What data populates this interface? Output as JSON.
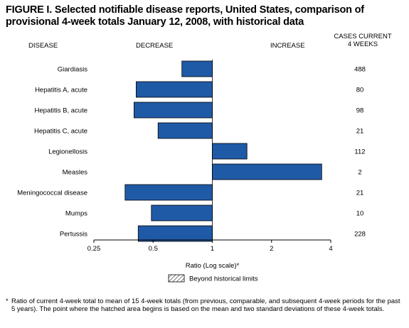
{
  "title": "FIGURE I. Selected notifiable disease reports, United States, comparison of provisional 4-week totals January 12, 2008, with historical data",
  "headers": {
    "disease": "DISEASE",
    "decrease": "DECREASE",
    "increase": "INCREASE",
    "cases": "CASES CURRENT\n4 WEEKS"
  },
  "legend_label": "Beyond historical limits",
  "footnote_star": "*",
  "footnote": "Ratio of current 4-week total to mean of 15 4-week totals (from previous, comparable, and subsequent 4-week periods for the past 5 years). The point where the hatched area begins is based on the mean and two standard deviations of these 4-week totals.",
  "colors": {
    "bar": "#1f5aa6",
    "bar_edge": "#000000"
  },
  "chart_data": {
    "type": "bar",
    "orientation": "horizontal",
    "categories": [
      "Giardiasis",
      "Hepatitis A, acute",
      "Hepatitis B, acute",
      "Hepatitis C, acute",
      "Legionellosis",
      "Measles",
      "Meningococcal disease",
      "Mumps",
      "Pertussis"
    ],
    "values": [
      0.7,
      0.41,
      0.4,
      0.53,
      1.5,
      3.6,
      0.36,
      0.49,
      0.42
    ],
    "cases_current_4_weeks": [
      "488",
      "80",
      "98",
      "21",
      "112",
      "2",
      "21",
      "10",
      "228"
    ],
    "xscale": "log2",
    "xlim": [
      0.25,
      4
    ],
    "xticks": [
      0.25,
      0.5,
      1,
      2,
      4
    ],
    "xtick_labels": [
      "0.25",
      "0.5",
      "1",
      "2",
      "4"
    ],
    "xlabel": "Ratio (Log scale)*",
    "baseline": 1,
    "grid": false,
    "hatched_bars": []
  }
}
